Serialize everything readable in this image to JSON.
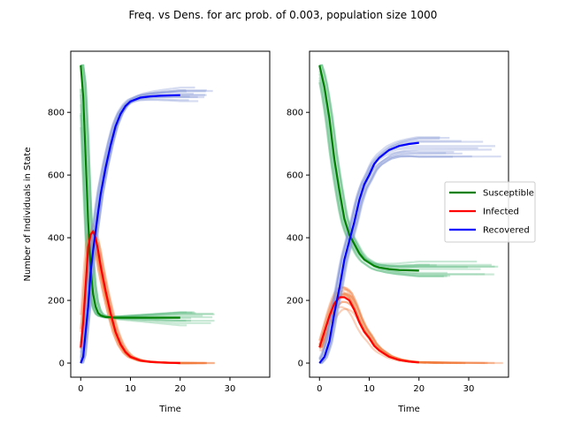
{
  "chart_data": {
    "type": "line",
    "title": "Freq. vs Dens. for arc prob. of 0.003, population size 1000",
    "legend": {
      "placement": "right",
      "entries": [
        {
          "name": "Susceptible",
          "color": "#008000"
        },
        {
          "name": "Infected",
          "color": "#ff0000"
        },
        {
          "name": "Recovered",
          "color": "#0000ff"
        }
      ]
    },
    "panels": [
      {
        "id": "left",
        "xlabel": "Time",
        "ylabel": "Number of Individuals in State",
        "xlim": [
          -2,
          38
        ],
        "ylim": [
          -45,
          995
        ],
        "xticks": [
          0,
          10,
          20,
          30
        ],
        "yticks": [
          0,
          200,
          400,
          600,
          800
        ],
        "x": [
          0,
          0.5,
          1,
          1.5,
          2,
          2.5,
          3,
          3.5,
          4,
          5,
          6,
          7,
          8,
          9,
          10,
          12,
          14,
          16,
          18,
          20
        ],
        "series": [
          {
            "name": "Susceptible",
            "color": "#008000",
            "values": [
              950,
              850,
              650,
              450,
              300,
              220,
              180,
              160,
              152,
              147,
              146,
              145,
              145,
              145,
              145,
              145,
              145,
              145,
              145,
              145
            ]
          },
          {
            "name": "Infected",
            "color": "#ff0000",
            "values": [
              50,
              130,
              250,
              370,
              410,
              420,
              400,
              360,
              310,
              230,
              160,
              100,
              60,
              35,
              20,
              8,
              4,
              2,
              1,
              0
            ]
          },
          {
            "name": "Recovered",
            "color": "#0000ff",
            "values": [
              0,
              20,
              100,
              180,
              290,
              360,
              420,
              480,
              538,
              623,
              694,
              755,
              795,
              820,
              835,
              847,
              851,
              853,
              854,
              855
            ]
          }
        ],
        "replicate_bands": {
          "Susceptible": {
            "x_end": 27,
            "final_range": [
              120,
              165
            ]
          },
          "Infected": {
            "x_end": 27,
            "peak_range": [
              380,
              455
            ]
          },
          "Recovered": {
            "x_end": 27,
            "final_range": [
              835,
              880
            ]
          }
        }
      },
      {
        "id": "right",
        "xlabel": "Time",
        "ylabel": "",
        "xlim": [
          -2,
          38
        ],
        "ylim": [
          -45,
          995
        ],
        "xticks": [
          0,
          10,
          20,
          30
        ],
        "yticks": [
          0,
          200,
          400,
          600,
          800
        ],
        "x": [
          0,
          1,
          2,
          3,
          4,
          5,
          6,
          7,
          8,
          9,
          10,
          11,
          12,
          14,
          16,
          18,
          20
        ],
        "series": [
          {
            "name": "Susceptible",
            "color": "#008000",
            "values": [
              950,
              880,
              780,
              650,
              550,
              460,
              410,
              380,
              350,
              330,
              320,
              310,
              305,
              300,
              297,
              296,
              295
            ]
          },
          {
            "name": "Infected",
            "color": "#ff0000",
            "values": [
              50,
              100,
              150,
              190,
              210,
              210,
              200,
              170,
              130,
              100,
              80,
              55,
              40,
              20,
              10,
              5,
              2
            ]
          },
          {
            "name": "Recovered",
            "color": "#0000ff",
            "values": [
              0,
              20,
              70,
              160,
              240,
              330,
              390,
              450,
              520,
              570,
              600,
              635,
              655,
              680,
              693,
              699,
              703
            ]
          }
        ],
        "replicate_bands": {
          "Susceptible": {
            "x_end": 37,
            "final_range": [
              270,
              330
            ]
          },
          "Infected": {
            "x_end": 37,
            "peak_range": [
              170,
              250
            ]
          },
          "Recovered": {
            "x_end": 37,
            "final_range": [
              655,
              730
            ]
          }
        }
      }
    ]
  }
}
